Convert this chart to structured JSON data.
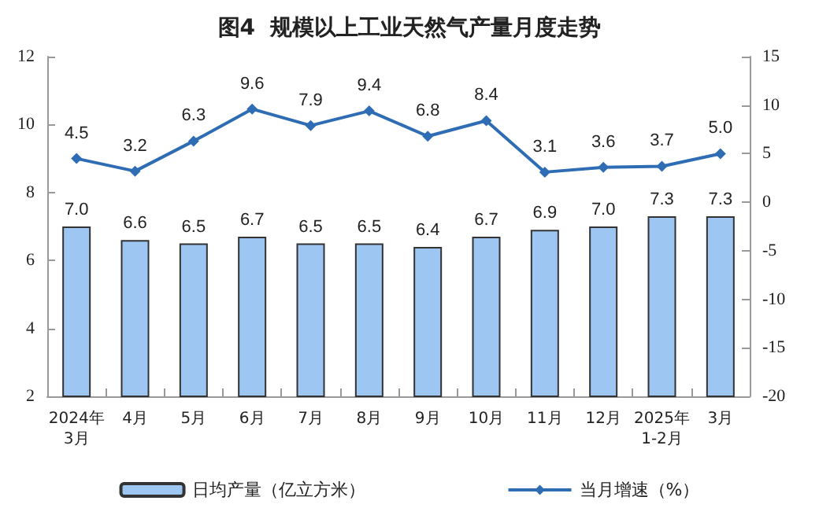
{
  "chart_data": {
    "type": "bar",
    "title": "图4  规模以上工业天然气产量月度走势",
    "categories": [
      "2024年\n3月",
      "4月",
      "5月",
      "6月",
      "7月",
      "8月",
      "9月",
      "10月",
      "11月",
      "12月",
      "2025年\n1-2月",
      "3月"
    ],
    "series": [
      {
        "name": "日均产量（亿立方米）",
        "color": "#9dc6f2",
        "values": [
          7.0,
          6.6,
          6.5,
          6.7,
          6.5,
          6.5,
          6.4,
          6.7,
          6.9,
          7.0,
          7.3,
          7.3
        ],
        "value_labels": [
          "7.0",
          "6.6",
          "6.5",
          "6.7",
          "6.5",
          "6.5",
          "6.4",
          "6.7",
          "6.9",
          "7.0",
          "7.3",
          "7.3"
        ]
      },
      {
        "name": "当月增速（%）",
        "type": "line",
        "axis": "y2",
        "color": "#2e6db4",
        "marker": "diamond",
        "values": [
          4.5,
          3.2,
          6.3,
          9.6,
          7.9,
          9.4,
          6.8,
          8.4,
          3.1,
          3.6,
          3.7,
          5.0
        ],
        "value_labels": [
          "4.5",
          "3.2",
          "6.3",
          "9.6",
          "7.9",
          "9.4",
          "6.8",
          "8.4",
          "3.1",
          "3.6",
          "3.7",
          "5.0"
        ]
      }
    ],
    "ylim": [
      2,
      12
    ],
    "yticks": [
      2,
      4,
      6,
      8,
      10,
      12
    ],
    "y2lim": [
      -20,
      15
    ],
    "y2ticks": [
      -20,
      -15,
      -10,
      -5,
      0,
      5,
      10,
      15
    ],
    "grid": false,
    "legend": "bottom"
  }
}
